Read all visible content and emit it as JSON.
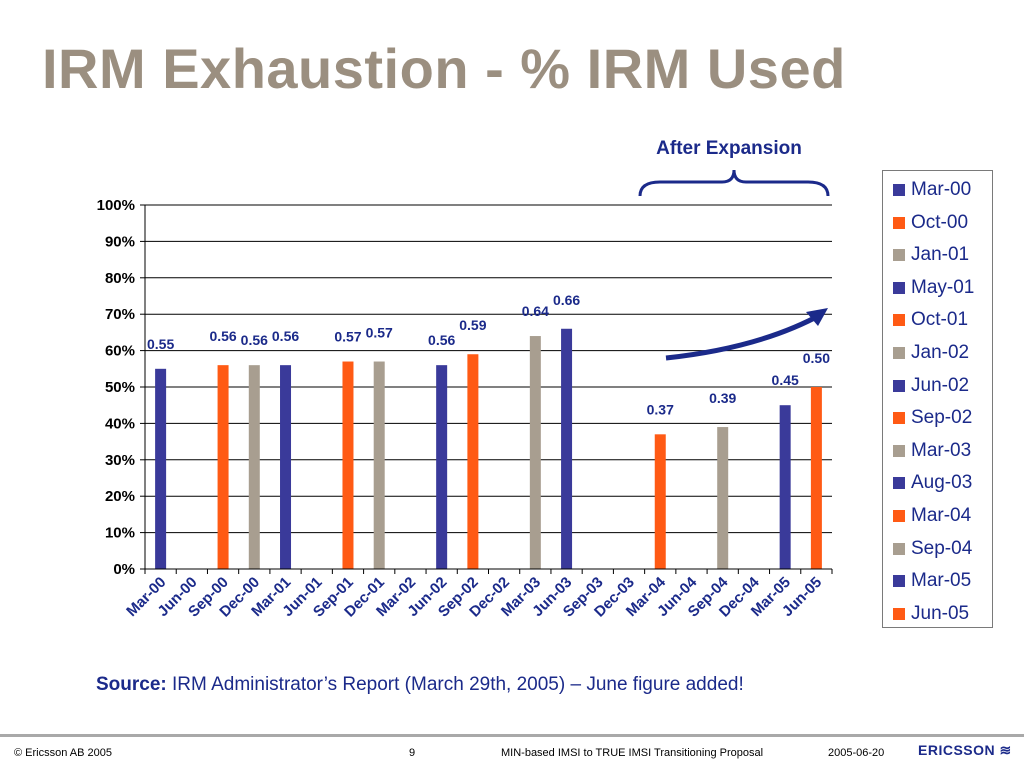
{
  "slide": {
    "title": "IRM Exhaustion - % IRM Used",
    "source_label": "Source:",
    "source_text": " IRM Administrator’s Report (March 29th, 2005) – June figure added!",
    "annotation": "After Expansion"
  },
  "footer": {
    "copyright": "© Ericsson AB 2005",
    "page": "9",
    "doc_title": "MIN-based IMSI to TRUE IMSI Transitioning Proposal",
    "date": "2005-06-20",
    "logo": "ERICSSON"
  },
  "colors": {
    "blue": "#3a3a9a",
    "orange": "#ff5a14",
    "gray": "#a89e90",
    "text": "#1b2a8a",
    "title": "#9b8f80"
  },
  "chart_data": {
    "type": "bar",
    "categories": [
      "Mar-00",
      "Jun-00",
      "Sep-00",
      "Dec-00",
      "Mar-01",
      "Jun-01",
      "Sep-01",
      "Dec-01",
      "Mar-02",
      "Jun-02",
      "Sep-02",
      "Dec-02",
      "Mar-03",
      "Jun-03",
      "Sep-03",
      "Dec-03",
      "Mar-04",
      "Jun-04",
      "Sep-04",
      "Dec-04",
      "Mar-05",
      "Jun-05"
    ],
    "series": [
      {
        "name": "Mar-00",
        "category": "Mar-00",
        "value": 0.55,
        "color": "#3a3a9a"
      },
      {
        "name": "Oct-00",
        "category": "Sep-00",
        "value": 0.56,
        "color": "#ff5a14"
      },
      {
        "name": "Jan-01",
        "category": "Dec-00",
        "value": 0.56,
        "color": "#a89e90"
      },
      {
        "name": "May-01",
        "category": "Mar-01",
        "value": 0.56,
        "color": "#3a3a9a"
      },
      {
        "name": "Oct-01",
        "category": "Sep-01",
        "value": 0.57,
        "color": "#ff5a14"
      },
      {
        "name": "Jan-02",
        "category": "Dec-01",
        "value": 0.57,
        "color": "#a89e90"
      },
      {
        "name": "Jun-02",
        "category": "Jun-02",
        "value": 0.56,
        "color": "#3a3a9a"
      },
      {
        "name": "Sep-02",
        "category": "Sep-02",
        "value": 0.59,
        "color": "#ff5a14"
      },
      {
        "name": "Mar-03",
        "category": "Mar-03",
        "value": 0.64,
        "color": "#a89e90"
      },
      {
        "name": "Aug-03",
        "category": "Jun-03",
        "value": 0.66,
        "color": "#3a3a9a"
      },
      {
        "name": "Mar-04",
        "category": "Mar-04",
        "value": 0.37,
        "color": "#ff5a14"
      },
      {
        "name": "Sep-04",
        "category": "Sep-04",
        "value": 0.39,
        "color": "#a89e90"
      },
      {
        "name": "Mar-05",
        "category": "Mar-05",
        "value": 0.45,
        "color": "#3a3a9a"
      },
      {
        "name": "Jun-05",
        "category": "Jun-05",
        "value": 0.5,
        "color": "#ff5a14"
      }
    ],
    "data_labels": [
      "0.55",
      "0.56",
      "0.56",
      "0.56",
      "0.57",
      "0.57",
      "0.56",
      "0.59",
      "0.64",
      "0.66",
      "0.37",
      "0.39",
      "0.45",
      "0.50"
    ],
    "yticks": [
      "0%",
      "10%",
      "20%",
      "30%",
      "40%",
      "50%",
      "60%",
      "70%",
      "80%",
      "90%",
      "100%"
    ],
    "ylim": [
      0,
      1
    ],
    "grid": true,
    "legend_position": "right",
    "title": "",
    "xlabel": "",
    "ylabel": ""
  }
}
